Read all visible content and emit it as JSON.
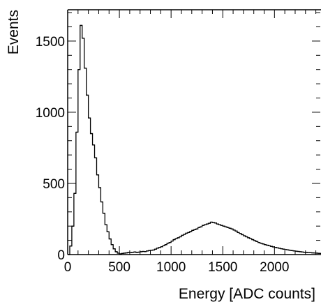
{
  "chart_data": {
    "type": "histogram",
    "xlabel": "Energy [ADC counts]",
    "ylabel": "Events",
    "xlim": [
      0,
      2450
    ],
    "ylim": [
      0,
      1720
    ],
    "grid": false,
    "line_color": "#000000",
    "x_ticks": [
      {
        "value": 0,
        "label": "0"
      },
      {
        "value": 500,
        "label": "500"
      },
      {
        "value": 1000,
        "label": "1000"
      },
      {
        "value": 1500,
        "label": "1500"
      },
      {
        "value": 2000,
        "label": "2000"
      }
    ],
    "y_ticks": [
      {
        "value": 0,
        "label": "0"
      },
      {
        "value": 500,
        "label": "500"
      },
      {
        "value": 1000,
        "label": "1000"
      },
      {
        "value": 1500,
        "label": "1500"
      }
    ],
    "bin_width": 20,
    "x_start": 0,
    "values": [
      0,
      60,
      200,
      430,
      860,
      1300,
      1610,
      1520,
      1310,
      1120,
      960,
      850,
      770,
      680,
      560,
      470,
      370,
      290,
      210,
      160,
      110,
      70,
      40,
      20,
      10,
      5,
      8,
      10,
      12,
      15,
      14,
      16,
      18,
      15,
      17,
      20,
      22,
      21,
      25,
      28,
      30,
      32,
      38,
      45,
      50,
      55,
      62,
      70,
      80,
      85,
      95,
      105,
      112,
      118,
      125,
      135,
      142,
      150,
      155,
      162,
      170,
      175,
      180,
      190,
      195,
      205,
      210,
      215,
      220,
      228,
      225,
      222,
      215,
      210,
      205,
      200,
      195,
      190,
      185,
      180,
      172,
      165,
      155,
      148,
      140,
      132,
      125,
      118,
      112,
      105,
      98,
      92,
      85,
      80,
      75,
      70,
      66,
      62,
      58,
      54,
      50,
      47,
      44,
      41,
      38,
      35,
      33,
      30,
      28,
      26,
      24,
      22,
      20,
      18,
      16,
      15,
      14,
      13,
      12,
      11,
      10,
      9,
      8
    ]
  }
}
